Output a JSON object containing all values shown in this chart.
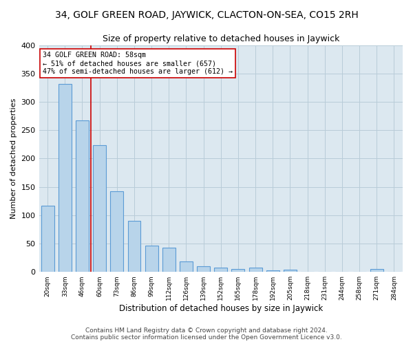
{
  "title": "34, GOLF GREEN ROAD, JAYWICK, CLACTON-ON-SEA, CO15 2RH",
  "subtitle": "Size of property relative to detached houses in Jaywick",
  "xlabel": "Distribution of detached houses by size in Jaywick",
  "ylabel": "Number of detached properties",
  "categories": [
    "20sqm",
    "33sqm",
    "46sqm",
    "60sqm",
    "73sqm",
    "86sqm",
    "99sqm",
    "112sqm",
    "126sqm",
    "139sqm",
    "152sqm",
    "165sqm",
    "178sqm",
    "192sqm",
    "205sqm",
    "218sqm",
    "231sqm",
    "244sqm",
    "258sqm",
    "271sqm",
    "284sqm"
  ],
  "values": [
    117,
    332,
    267,
    223,
    142,
    90,
    46,
    43,
    18,
    10,
    7,
    5,
    7,
    3,
    4,
    0,
    0,
    0,
    0,
    5,
    0
  ],
  "bar_color": "#b8d4ea",
  "bar_edge_color": "#5b9bd5",
  "background_color": "#ffffff",
  "plot_bg_color": "#dce8f0",
  "grid_color": "#b8ccd8",
  "annotation_text_line1": "34 GOLF GREEN ROAD: 58sqm",
  "annotation_text_line2": "← 51% of detached houses are smaller (657)",
  "annotation_text_line3": "47% of semi-detached houses are larger (612) →",
  "vline_x_index": 2.5,
  "vline_color": "#cc0000",
  "annotation_box_color": "#ffffff",
  "annotation_box_edge_color": "#cc0000",
  "footer_line1": "Contains HM Land Registry data © Crown copyright and database right 2024.",
  "footer_line2": "Contains public sector information licensed under the Open Government Licence v3.0.",
  "ylim": [
    0,
    400
  ],
  "title_fontsize": 10,
  "subtitle_fontsize": 9,
  "bar_width": 0.75
}
